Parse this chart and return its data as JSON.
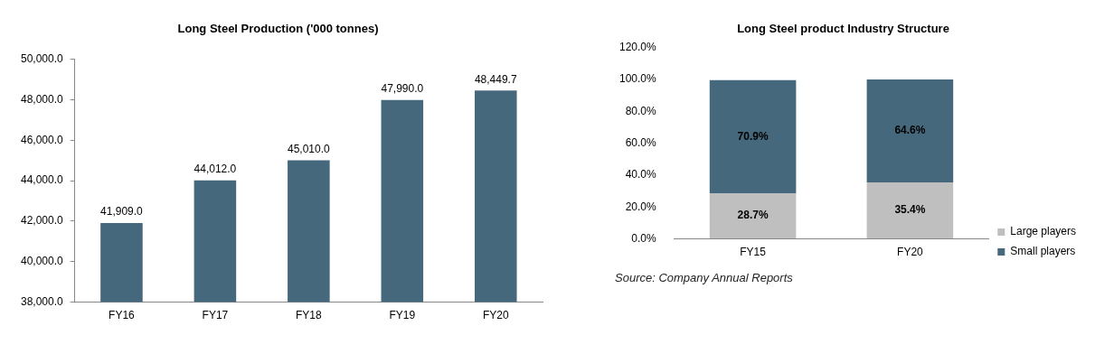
{
  "chart_data": [
    {
      "type": "bar",
      "title": "Long Steel Production ('000 tonnes)",
      "categories": [
        "FY16",
        "FY17",
        "FY18",
        "FY19",
        "FY20"
      ],
      "values": [
        41909.0,
        44012.0,
        45010.0,
        47990.0,
        48449.7
      ],
      "value_labels": [
        "41,909.0",
        "44,012.0",
        "45,010.0",
        "47,990.0",
        "48,449.7"
      ],
      "color": "#46687c",
      "ylim": [
        38000,
        50000
      ],
      "yticks": [
        {
          "value": 38000,
          "label": "38,000.0"
        },
        {
          "value": 40000,
          "label": "40,000.0"
        },
        {
          "value": 42000,
          "label": "42,000.0"
        },
        {
          "value": 44000,
          "label": "44,000.0"
        },
        {
          "value": 46000,
          "label": "46,000.0"
        },
        {
          "value": 48000,
          "label": "48,000.0"
        },
        {
          "value": 50000,
          "label": "50,000.0"
        }
      ],
      "grid": false
    },
    {
      "type": "bar",
      "stacked": true,
      "title": "Long Steel product Industry Structure",
      "categories": [
        "FY15",
        "FY20"
      ],
      "series": [
        {
          "name": "Large players",
          "color": "#bfbfbf",
          "values": [
            28.7,
            35.4
          ],
          "value_labels": [
            "28.7%",
            "35.4%"
          ]
        },
        {
          "name": "Small players",
          "color": "#46687c",
          "values": [
            70.9,
            64.6
          ],
          "value_labels": [
            "70.9%",
            "64.6%"
          ]
        }
      ],
      "ylim": [
        0,
        120
      ],
      "yticks": [
        {
          "value": 0,
          "label": "0.0%"
        },
        {
          "value": 20,
          "label": "20.0%"
        },
        {
          "value": 40,
          "label": "40.0%"
        },
        {
          "value": 60,
          "label": "60.0%"
        },
        {
          "value": 80,
          "label": "80.0%"
        },
        {
          "value": 100,
          "label": "100.0%"
        },
        {
          "value": 120,
          "label": "120.0%"
        }
      ],
      "grid": false,
      "legend": "right",
      "annotations": [
        "Source: Company Annual Reports"
      ]
    }
  ]
}
